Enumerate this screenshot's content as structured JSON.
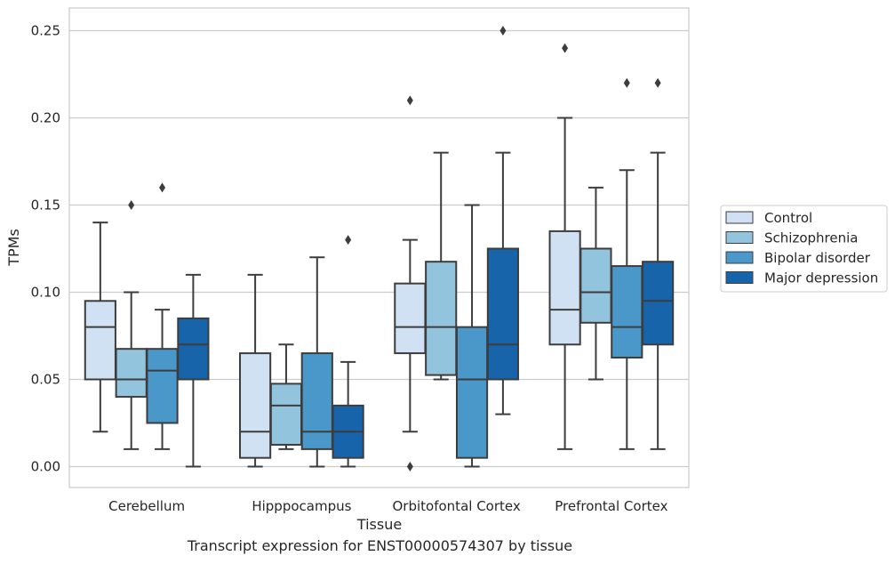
{
  "caption": "Transcript expression for ENST00000574307 by tissue",
  "colors": {
    "Control": "#cfe1f2",
    "Schizophrenia": "#93c4de",
    "Bipolar disorder": "#4a98c9",
    "Major depression": "#1764ab",
    "edge": "#3d3d3d",
    "grid": "#cccccc",
    "frame": "#cccccc"
  },
  "chart_data": {
    "type": "box",
    "xlabel": "Tissue",
    "ylabel": "TPMs",
    "ylim": [
      -0.012,
      0.263
    ],
    "yticks": [
      0.0,
      0.05,
      0.1,
      0.15,
      0.2,
      0.25
    ],
    "ytick_labels": [
      "0.00",
      "0.05",
      "0.10",
      "0.15",
      "0.20",
      "0.25"
    ],
    "grid": "horizontal",
    "legend_position": "right",
    "categories": [
      "Cerebellum",
      "Hipppocampus",
      "Orbitofontal Cortex",
      "Prefrontal Cortex"
    ],
    "series": [
      {
        "name": "Control",
        "boxes": [
          {
            "whislo": 0.02,
            "q1": 0.05,
            "med": 0.08,
            "q3": 0.095,
            "whishi": 0.14,
            "fliers": []
          },
          {
            "whislo": 0.0,
            "q1": 0.005,
            "med": 0.02,
            "q3": 0.065,
            "whishi": 0.11,
            "fliers": []
          },
          {
            "whislo": 0.02,
            "q1": 0.065,
            "med": 0.08,
            "q3": 0.105,
            "whishi": 0.13,
            "fliers": [
              0.21,
              0.0
            ]
          },
          {
            "whislo": 0.01,
            "q1": 0.07,
            "med": 0.09,
            "q3": 0.135,
            "whishi": 0.2,
            "fliers": [
              0.24
            ]
          }
        ]
      },
      {
        "name": "Schizophrenia",
        "boxes": [
          {
            "whislo": 0.01,
            "q1": 0.04,
            "med": 0.05,
            "q3": 0.0675,
            "whishi": 0.1,
            "fliers": [
              0.15
            ]
          },
          {
            "whislo": 0.01,
            "q1": 0.0125,
            "med": 0.035,
            "q3": 0.0475,
            "whishi": 0.07,
            "fliers": []
          },
          {
            "whislo": 0.05,
            "q1": 0.0525,
            "med": 0.08,
            "q3": 0.1175,
            "whishi": 0.18,
            "fliers": []
          },
          {
            "whislo": 0.05,
            "q1": 0.0825,
            "med": 0.1,
            "q3": 0.125,
            "whishi": 0.16,
            "fliers": []
          }
        ]
      },
      {
        "name": "Bipolar disorder",
        "boxes": [
          {
            "whislo": 0.01,
            "q1": 0.025,
            "med": 0.055,
            "q3": 0.0675,
            "whishi": 0.09,
            "fliers": [
              0.16
            ]
          },
          {
            "whislo": 0.0,
            "q1": 0.01,
            "med": 0.02,
            "q3": 0.065,
            "whishi": 0.12,
            "fliers": []
          },
          {
            "whislo": 0.0,
            "q1": 0.005,
            "med": 0.05,
            "q3": 0.08,
            "whishi": 0.15,
            "fliers": []
          },
          {
            "whislo": 0.01,
            "q1": 0.0625,
            "med": 0.08,
            "q3": 0.115,
            "whishi": 0.17,
            "fliers": [
              0.22
            ]
          }
        ]
      },
      {
        "name": "Major depression",
        "boxes": [
          {
            "whislo": 0.0,
            "q1": 0.05,
            "med": 0.07,
            "q3": 0.085,
            "whishi": 0.11,
            "fliers": []
          },
          {
            "whislo": 0.0,
            "q1": 0.005,
            "med": 0.02,
            "q3": 0.035,
            "whishi": 0.06,
            "fliers": [
              0.13
            ]
          },
          {
            "whislo": 0.03,
            "q1": 0.05,
            "med": 0.07,
            "q3": 0.125,
            "whishi": 0.18,
            "fliers": [
              0.25
            ]
          },
          {
            "whislo": 0.01,
            "q1": 0.07,
            "med": 0.095,
            "q3": 0.1175,
            "whishi": 0.18,
            "fliers": [
              0.22
            ]
          }
        ]
      }
    ]
  }
}
